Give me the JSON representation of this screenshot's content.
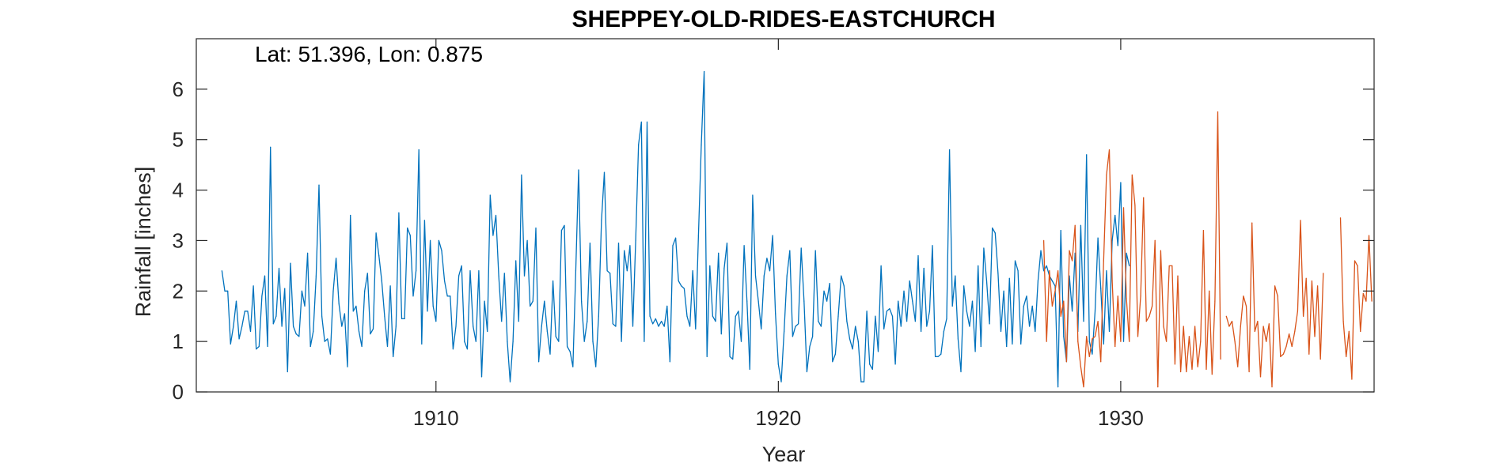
{
  "chart_data": {
    "type": "line",
    "title": "SHEPPEY-OLD-RIDES-EASTCHURCH",
    "annotation": "Lat: 51.396, Lon: 0.875",
    "xlabel": "Year",
    "ylabel": "Rainfall [inches]",
    "xlim": [
      1903.0,
      1937.4
    ],
    "ylim": [
      0,
      7
    ],
    "xticks": [
      1910,
      1920,
      1930
    ],
    "yticks": [
      0,
      1,
      2,
      3,
      4,
      5,
      6
    ],
    "box": true,
    "grid": false,
    "series": [
      {
        "color": "#0072BD",
        "x_start": 1903.75,
        "x_step": 0.0833333,
        "values": [
          2.4,
          2.0,
          2.0,
          0.95,
          1.3,
          1.8,
          1.05,
          1.3,
          1.6,
          1.6,
          1.2,
          2.1,
          0.85,
          0.9,
          1.9,
          2.3,
          0.9,
          4.85,
          1.35,
          1.5,
          2.45,
          1.3,
          2.05,
          0.4,
          2.55,
          1.3,
          1.15,
          1.1,
          2.0,
          1.7,
          2.75,
          0.9,
          1.2,
          2.3,
          4.1,
          1.5,
          1.0,
          1.05,
          0.75,
          2.0,
          2.65,
          1.75,
          1.3,
          1.55,
          0.5,
          3.5,
          1.6,
          1.7,
          1.2,
          0.9,
          2.0,
          2.35,
          1.15,
          1.25,
          3.15,
          2.7,
          2.2,
          1.5,
          0.9,
          2.1,
          0.7,
          1.3,
          3.55,
          1.45,
          1.45,
          3.25,
          3.1,
          1.9,
          2.4,
          4.8,
          0.95,
          3.4,
          1.6,
          3.0,
          1.7,
          1.4,
          3.0,
          2.8,
          2.2,
          1.9,
          1.9,
          0.85,
          1.3,
          2.3,
          2.5,
          1.0,
          0.85,
          2.4,
          1.3,
          1.0,
          2.4,
          0.3,
          1.8,
          1.2,
          3.9,
          3.1,
          3.5,
          2.3,
          1.4,
          2.35,
          1.0,
          0.2,
          1.0,
          2.6,
          1.4,
          4.3,
          2.3,
          3.0,
          1.7,
          1.8,
          3.25,
          0.6,
          1.3,
          1.8,
          1.2,
          0.75,
          2.2,
          1.1,
          1.0,
          3.2,
          3.3,
          0.9,
          0.8,
          0.5,
          2.4,
          4.4,
          1.8,
          1.0,
          1.4,
          2.95,
          1.0,
          0.5,
          1.5,
          3.4,
          4.35,
          2.4,
          2.35,
          1.35,
          1.3,
          2.95,
          1.0,
          2.8,
          2.4,
          2.9,
          1.3,
          3.0,
          4.9,
          5.35,
          1.0,
          5.35,
          1.5,
          1.35,
          1.45,
          1.3,
          1.4,
          1.3,
          1.7,
          0.6,
          2.9,
          3.05,
          2.2,
          2.1,
          2.05,
          1.5,
          1.3,
          2.4,
          1.25,
          3.1,
          4.9,
          6.35,
          0.7,
          2.5,
          1.5,
          1.4,
          2.75,
          1.15,
          2.45,
          2.95,
          0.7,
          0.65,
          1.5,
          1.6,
          1.0,
          2.9,
          1.8,
          0.45,
          3.9,
          2.3,
          1.8,
          1.25,
          2.3,
          2.65,
          2.4,
          3.1,
          1.55,
          0.55,
          0.2,
          1.2,
          2.3,
          2.8,
          1.1,
          1.3,
          1.35,
          2.85,
          1.8,
          0.4,
          0.9,
          1.1,
          2.8,
          1.4,
          1.3,
          2.0,
          1.8,
          2.15,
          0.6,
          0.75,
          1.5,
          2.3,
          2.1,
          1.4,
          1.05,
          0.85,
          1.3,
          1.0,
          0.2,
          0.2,
          1.6,
          0.55,
          0.45,
          1.5,
          0.8,
          2.5,
          1.25,
          1.6,
          1.65,
          1.5,
          0.55,
          1.8,
          1.3,
          2.0,
          1.4,
          2.2,
          1.8,
          1.4,
          2.7,
          1.2,
          2.45,
          1.3,
          1.6,
          2.9,
          0.7,
          0.7,
          0.75,
          1.2,
          1.45,
          4.8,
          1.7,
          2.3,
          1.05,
          0.4,
          2.1,
          1.6,
          1.3,
          1.8,
          0.8,
          2.5,
          0.9,
          2.85,
          2.2,
          1.35,
          3.25,
          3.15,
          2.35,
          1.2,
          2.0,
          0.9,
          2.25,
          0.95,
          2.6,
          2.4,
          0.95,
          1.7,
          1.9,
          1.3,
          1.7,
          1.2,
          2.2,
          2.8,
          2.4,
          2.5,
          2.3,
          2.2,
          2.1,
          0.1,
          3.2,
          1.1,
          0.6,
          2.3,
          1.6,
          2.75,
          1.2,
          3.3,
          1.4,
          4.7,
          1.0,
          0.75,
          1.6,
          3.05,
          2.05,
          0.95,
          2.4,
          1.2,
          3.0,
          3.5,
          2.9,
          4.15,
          1.0,
          2.75,
          2.5
        ]
      },
      {
        "color": "#D95319",
        "x_start": 1927.75,
        "x_step": 0.0833333,
        "values": [
          3.0,
          1.0,
          2.4,
          1.7,
          2.0,
          2.4,
          1.5,
          1.8,
          0.6,
          2.8,
          2.6,
          3.3,
          1.0,
          0.5,
          0.1,
          1.1,
          0.7,
          1.05,
          1.1,
          1.4,
          0.6,
          2.6,
          4.3,
          4.8,
          2.2,
          0.9,
          1.9,
          1.0,
          3.65,
          1.85,
          1.0,
          4.3,
          3.7,
          1.1,
          1.9,
          3.85,
          1.4,
          1.5,
          1.7,
          3.0,
          0.1,
          2.8,
          1.3,
          1.0,
          2.5,
          2.5,
          0.55,
          2.3,
          0.4,
          1.3,
          0.4,
          1.1,
          0.45,
          1.3,
          0.5,
          1.0,
          3.2,
          0.45,
          2.0,
          0.35,
          1.8,
          5.55,
          0.65,
          null,
          1.5,
          1.3,
          1.4,
          1.0,
          0.5,
          1.3,
          1.9,
          1.7,
          0.4,
          3.35,
          1.2,
          1.4,
          0.3,
          1.3,
          1.0,
          1.35,
          0.1,
          2.1,
          1.9,
          0.7,
          0.75,
          0.9,
          1.15,
          0.9,
          1.2,
          1.6,
          3.4,
          1.5,
          2.25,
          0.75,
          2.2,
          1.1,
          2.1,
          0.65,
          2.35,
          null,
          null,
          null,
          null,
          null,
          3.45,
          1.4,
          0.7,
          1.2,
          0.25,
          2.6,
          2.5,
          1.2,
          1.95,
          1.8,
          3.1,
          1.8
        ]
      }
    ]
  }
}
